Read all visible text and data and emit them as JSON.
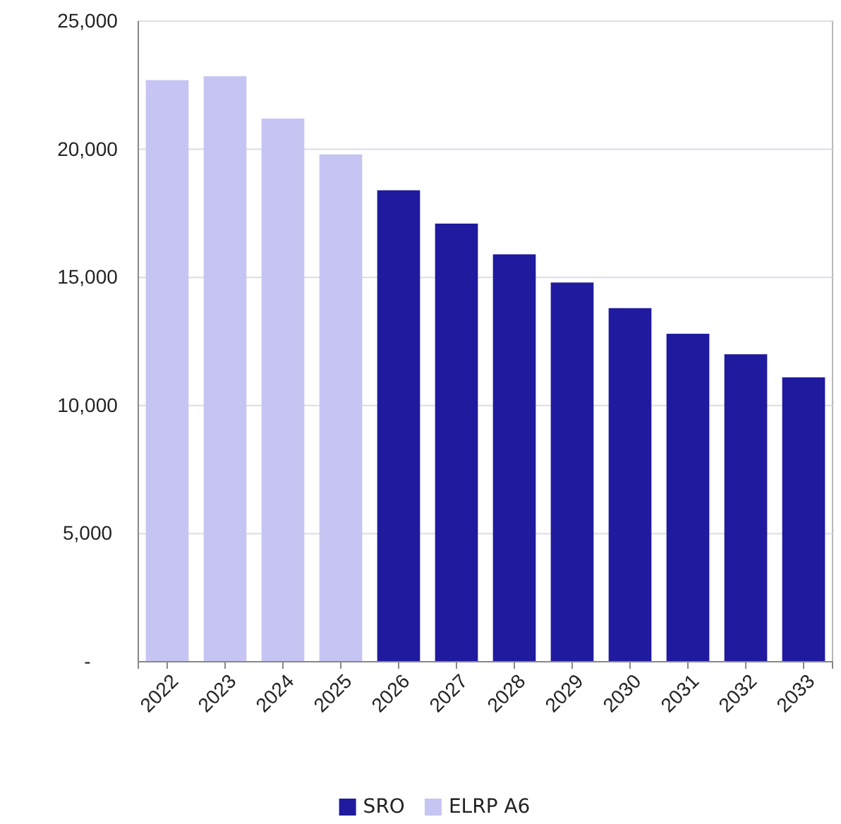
{
  "chart_data": {
    "type": "bar",
    "categories": [
      "2022",
      "2023",
      "2024",
      "2025",
      "2026",
      "2027",
      "2028",
      "2029",
      "2030",
      "2031",
      "2032",
      "2033"
    ],
    "series": [
      {
        "name": "SRO",
        "color": "#1f1a9e",
        "values": [
          null,
          null,
          null,
          null,
          18400,
          17100,
          15900,
          14800,
          13800,
          12800,
          12000,
          11100
        ]
      },
      {
        "name": "ELRP A6",
        "color": "#c6c4f2",
        "values": [
          22700,
          22850,
          21200,
          19800,
          null,
          null,
          null,
          null,
          null,
          null,
          null,
          null
        ]
      }
    ],
    "ylim": [
      0,
      25000
    ],
    "yticks": [
      {
        "value": 0,
        "label": "-"
      },
      {
        "value": 5000,
        "label": "5,000"
      },
      {
        "value": 10000,
        "label": "10,000"
      },
      {
        "value": 15000,
        "label": "15,000"
      },
      {
        "value": 20000,
        "label": "20,000"
      },
      {
        "value": 25000,
        "label": "25,000"
      }
    ],
    "grid": "y",
    "legend": "bottom"
  }
}
